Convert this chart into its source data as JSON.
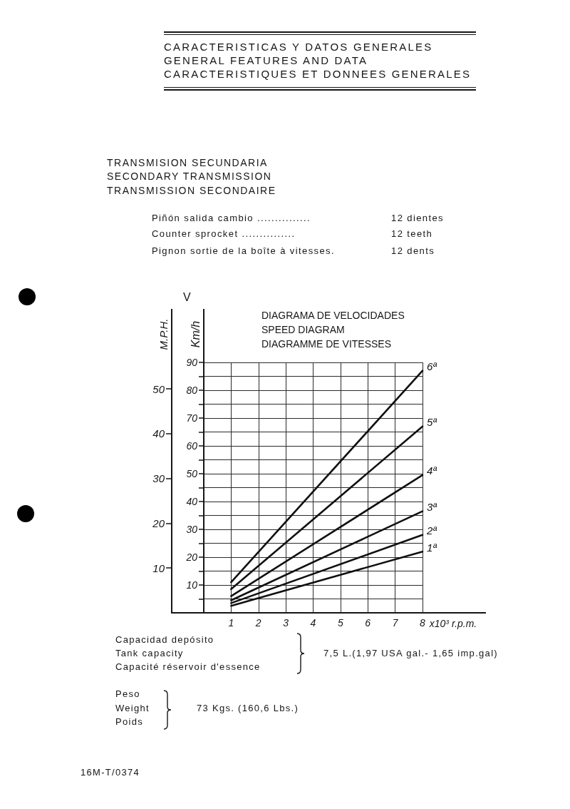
{
  "chart_data": {
    "type": "line",
    "title": "DIAGRAMA DE VELOCIDADES\nSPEED DIAGRAM\nDIAGRAMME DE VITESSES",
    "xlabel": "x10³ r.p.m.",
    "ylabel": "Km/h",
    "y2label": "M.P.H.",
    "annotations": [
      "CARACTERISTICAS Y DATOS GENERALES",
      "GENERAL FEATURES AND DATA",
      "CARACTERISTIQUES ET DONNEES GENERALES",
      "TRANSMISION SECUNDARIA",
      "SECONDARY TRANSMISSION",
      "TRANSMISSION SECONDAIRE",
      "Piñón salida cambio ...............",
      "12 dientes",
      "Counter sprocket ...............",
      "12 teeth",
      "Pignon sortie de la boîte à vitesses.",
      "12 dents",
      "V",
      "Capacidad depósito",
      "Tank capacity",
      "Capacité réservoir d'essence",
      "7,5 L.(1,97 USA gal.- 1,65 imp.gal)",
      "Peso",
      "Weight",
      "Poids",
      "73 Kgs. (160,6 Lbs.)",
      "16M-T/0374"
    ],
    "x": [
      1,
      8
    ],
    "series": [
      {
        "name": "1ª",
        "color": "#111111",
        "values": [
          2.5,
          22
        ]
      },
      {
        "name": "2ª",
        "color": "#111111",
        "values": [
          3.5,
          28
        ]
      },
      {
        "name": "3ª",
        "color": "#111111",
        "values": [
          4.5,
          36.5
        ]
      },
      {
        "name": "4ª",
        "color": "#111111",
        "values": [
          6,
          49.5
        ]
      },
      {
        "name": "5ª",
        "color": "#111111",
        "values": [
          8.5,
          67
        ]
      },
      {
        "name": "6ª",
        "color": "#111111",
        "values": [
          11,
          87
        ]
      }
    ],
    "xlim": [
      0,
      8
    ],
    "xticks": [
      1,
      2,
      3,
      4,
      5,
      6,
      7,
      8
    ],
    "ylim": [
      0,
      90
    ],
    "yticks": [
      {
        "value": 5,
        "label": null
      },
      10,
      {
        "value": 15,
        "label": null
      },
      20,
      {
        "value": 25,
        "label": null
      },
      30,
      {
        "value": 35,
        "label": null
      },
      40,
      {
        "value": 45,
        "label": null
      },
      50,
      {
        "value": 55,
        "label": null
      },
      60,
      {
        "value": 65,
        "label": null
      },
      70,
      {
        "value": 75,
        "label": null
      },
      80,
      {
        "value": 85,
        "label": null
      },
      90
    ],
    "y2lim": [
      0,
      55.9
    ],
    "y2ticks": [
      10,
      20,
      30,
      40,
      50
    ],
    "grid": true,
    "marker": "none",
    "line_style": "solid"
  }
}
